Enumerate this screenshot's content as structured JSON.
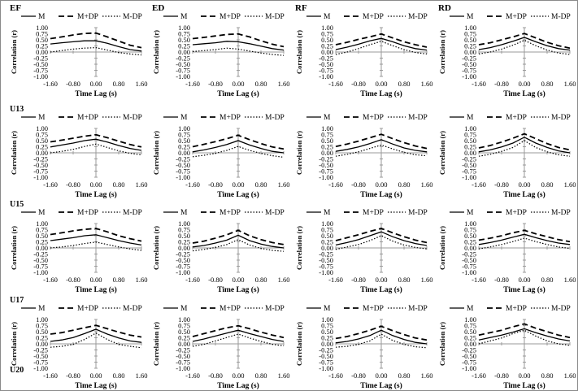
{
  "chart_data": {
    "type": "line",
    "columns": [
      "EF",
      "ED",
      "RF",
      "RD"
    ],
    "rows": [
      "U13",
      "U15",
      "U17",
      "U20"
    ],
    "xlabel": "Time Lag (s)",
    "ylabel": "Correlation (r)",
    "xticks": [
      "-1.60",
      "-0.80",
      "0.00",
      "0.80",
      "1.60"
    ],
    "yticks": [
      "1.00",
      "0.75",
      "0.50",
      "0.25",
      "0.00",
      "-0.25",
      "-0.50",
      "-0.75",
      "-1.00"
    ],
    "xlim": [
      -1.6,
      1.6
    ],
    "ylim": [
      -1.0,
      1.0
    ],
    "x": [
      -1.6,
      -1.2,
      -0.8,
      -0.4,
      0.0,
      0.4,
      0.8,
      1.2,
      1.6
    ],
    "legend": [
      "M",
      "M+DP",
      "M-DP"
    ],
    "grid": false,
    "panels": [
      {
        "row": "U13",
        "col": "EF",
        "series": [
          {
            "name": "M",
            "values": [
              0.33,
              0.38,
              0.42,
              0.46,
              0.46,
              0.36,
              0.22,
              0.1,
              0.04
            ]
          },
          {
            "name": "M+DP",
            "values": [
              0.55,
              0.62,
              0.7,
              0.76,
              0.78,
              0.62,
              0.45,
              0.28,
              0.18
            ]
          },
          {
            "name": "M-DP",
            "values": [
              0.0,
              0.06,
              0.12,
              0.16,
              0.18,
              0.08,
              -0.02,
              -0.08,
              -0.12
            ]
          }
        ]
      },
      {
        "row": "U13",
        "col": "ED",
        "series": [
          {
            "name": "M",
            "values": [
              0.3,
              0.34,
              0.38,
              0.44,
              0.42,
              0.34,
              0.24,
              0.14,
              0.08
            ]
          },
          {
            "name": "M+DP",
            "values": [
              0.55,
              0.6,
              0.66,
              0.72,
              0.74,
              0.62,
              0.46,
              0.32,
              0.22
            ]
          },
          {
            "name": "M-DP",
            "values": [
              0.02,
              0.06,
              0.1,
              0.16,
              0.12,
              0.04,
              -0.04,
              -0.1,
              -0.14
            ]
          }
        ]
      },
      {
        "row": "U13",
        "col": "RF",
        "series": [
          {
            "name": "M",
            "values": [
              0.1,
              0.2,
              0.32,
              0.46,
              0.56,
              0.42,
              0.26,
              0.14,
              0.08
            ]
          },
          {
            "name": "M+DP",
            "values": [
              0.3,
              0.4,
              0.52,
              0.62,
              0.74,
              0.58,
              0.42,
              0.3,
              0.2
            ]
          },
          {
            "name": "M-DP",
            "values": [
              -0.1,
              0.0,
              0.14,
              0.3,
              0.44,
              0.26,
              0.1,
              -0.02,
              -0.08
            ]
          }
        ]
      },
      {
        "row": "U13",
        "col": "RD",
        "series": [
          {
            "name": "M",
            "values": [
              0.1,
              0.18,
              0.3,
              0.44,
              0.6,
              0.42,
              0.26,
              0.14,
              0.08
            ]
          },
          {
            "name": "M+DP",
            "values": [
              0.3,
              0.38,
              0.5,
              0.62,
              0.76,
              0.58,
              0.4,
              0.26,
              0.16
            ]
          },
          {
            "name": "M-DP",
            "values": [
              -0.08,
              0.0,
              0.12,
              0.28,
              0.48,
              0.26,
              0.08,
              -0.04,
              -0.1
            ]
          }
        ]
      },
      {
        "row": "U15",
        "col": "EF",
        "series": [
          {
            "name": "M",
            "values": [
              0.24,
              0.32,
              0.4,
              0.5,
              0.56,
              0.44,
              0.3,
              0.18,
              0.1
            ]
          },
          {
            "name": "M+DP",
            "values": [
              0.45,
              0.52,
              0.6,
              0.68,
              0.74,
              0.62,
              0.48,
              0.34,
              0.24
            ]
          },
          {
            "name": "M-DP",
            "values": [
              0.0,
              0.06,
              0.14,
              0.26,
              0.36,
              0.22,
              0.08,
              -0.02,
              -0.08
            ]
          }
        ]
      },
      {
        "row": "U15",
        "col": "ED",
        "series": [
          {
            "name": "M",
            "values": [
              0.04,
              0.12,
              0.22,
              0.34,
              0.5,
              0.32,
              0.18,
              0.06,
              0.0
            ]
          },
          {
            "name": "M+DP",
            "values": [
              0.25,
              0.35,
              0.46,
              0.58,
              0.72,
              0.54,
              0.38,
              0.24,
              0.16
            ]
          },
          {
            "name": "M-DP",
            "values": [
              -0.16,
              -0.1,
              -0.02,
              0.1,
              0.26,
              0.1,
              -0.02,
              -0.12,
              -0.18
            ]
          }
        ]
      },
      {
        "row": "U15",
        "col": "RF",
        "series": [
          {
            "name": "M",
            "values": [
              0.06,
              0.14,
              0.24,
              0.38,
              0.54,
              0.36,
              0.2,
              0.1,
              0.04
            ]
          },
          {
            "name": "M+DP",
            "values": [
              0.26,
              0.36,
              0.48,
              0.62,
              0.76,
              0.58,
              0.42,
              0.28,
              0.18
            ]
          },
          {
            "name": "M-DP",
            "values": [
              -0.14,
              -0.06,
              0.04,
              0.18,
              0.32,
              0.16,
              0.02,
              -0.08,
              -0.12
            ]
          }
        ]
      },
      {
        "row": "U15",
        "col": "RD",
        "series": [
          {
            "name": "M",
            "values": [
              0.04,
              0.12,
              0.24,
              0.4,
              0.64,
              0.4,
              0.22,
              0.08,
              0.0
            ]
          },
          {
            "name": "M+DP",
            "values": [
              0.2,
              0.3,
              0.44,
              0.6,
              0.78,
              0.58,
              0.38,
              0.22,
              0.12
            ]
          },
          {
            "name": "M-DP",
            "values": [
              -0.14,
              -0.06,
              0.06,
              0.22,
              0.5,
              0.22,
              0.04,
              -0.08,
              -0.14
            ]
          }
        ]
      },
      {
        "row": "U17",
        "col": "EF",
        "series": [
          {
            "name": "M",
            "values": [
              0.3,
              0.36,
              0.42,
              0.5,
              0.54,
              0.42,
              0.3,
              0.2,
              0.12
            ]
          },
          {
            "name": "M+DP",
            "values": [
              0.55,
              0.62,
              0.7,
              0.76,
              0.8,
              0.66,
              0.5,
              0.38,
              0.28
            ]
          },
          {
            "name": "M-DP",
            "values": [
              0.0,
              0.04,
              0.1,
              0.18,
              0.24,
              0.14,
              0.04,
              -0.04,
              -0.1
            ]
          }
        ]
      },
      {
        "row": "U17",
        "col": "ED",
        "series": [
          {
            "name": "M",
            "values": [
              0.04,
              0.1,
              0.2,
              0.32,
              0.52,
              0.3,
              0.16,
              0.06,
              0.0
            ]
          },
          {
            "name": "M+DP",
            "values": [
              0.2,
              0.28,
              0.4,
              0.54,
              0.72,
              0.5,
              0.34,
              0.22,
              0.14
            ]
          },
          {
            "name": "M-DP",
            "values": [
              -0.12,
              -0.06,
              0.02,
              0.14,
              0.34,
              0.12,
              -0.02,
              -0.1,
              -0.14
            ]
          }
        ]
      },
      {
        "row": "U17",
        "col": "RF",
        "series": [
          {
            "name": "M",
            "values": [
              0.12,
              0.22,
              0.34,
              0.5,
              0.66,
              0.46,
              0.3,
              0.18,
              0.1
            ]
          },
          {
            "name": "M+DP",
            "values": [
              0.3,
              0.42,
              0.54,
              0.68,
              0.8,
              0.62,
              0.46,
              0.32,
              0.22
            ]
          },
          {
            "name": "M-DP",
            "values": [
              -0.06,
              0.04,
              0.14,
              0.3,
              0.5,
              0.28,
              0.12,
              0.02,
              -0.04
            ]
          }
        ]
      },
      {
        "row": "U17",
        "col": "RD",
        "series": [
          {
            "name": "M",
            "values": [
              0.14,
              0.22,
              0.32,
              0.44,
              0.56,
              0.42,
              0.3,
              0.2,
              0.14
            ]
          },
          {
            "name": "M+DP",
            "values": [
              0.32,
              0.4,
              0.5,
              0.62,
              0.72,
              0.58,
              0.46,
              0.34,
              0.26
            ]
          },
          {
            "name": "M-DP",
            "values": [
              -0.04,
              0.04,
              0.14,
              0.26,
              0.4,
              0.26,
              0.14,
              0.04,
              -0.02
            ]
          }
        ]
      },
      {
        "row": "U20",
        "col": "EF",
        "series": [
          {
            "name": "M",
            "values": [
              0.1,
              0.16,
              0.26,
              0.42,
              0.6,
              0.4,
              0.24,
              0.12,
              0.06
            ]
          },
          {
            "name": "M+DP",
            "values": [
              0.4,
              0.46,
              0.56,
              0.66,
              0.76,
              0.62,
              0.48,
              0.36,
              0.28
            ]
          },
          {
            "name": "M-DP",
            "values": [
              -0.14,
              -0.1,
              -0.02,
              0.18,
              0.44,
              0.18,
              -0.02,
              -0.1,
              -0.16
            ]
          }
        ]
      },
      {
        "row": "U20",
        "col": "ED",
        "series": [
          {
            "name": "M",
            "values": [
              0.1,
              0.2,
              0.32,
              0.44,
              0.56,
              0.42,
              0.3,
              0.18,
              0.1
            ]
          },
          {
            "name": "M+DP",
            "values": [
              0.3,
              0.42,
              0.54,
              0.66,
              0.74,
              0.62,
              0.48,
              0.36,
              0.26
            ]
          },
          {
            "name": "M-DP",
            "values": [
              -0.1,
              -0.02,
              0.12,
              0.26,
              0.4,
              0.24,
              0.1,
              -0.02,
              -0.08
            ]
          }
        ]
      },
      {
        "row": "U20",
        "col": "RF",
        "series": [
          {
            "name": "M",
            "values": [
              0.04,
              0.1,
              0.2,
              0.34,
              0.56,
              0.34,
              0.18,
              0.06,
              0.0
            ]
          },
          {
            "name": "M+DP",
            "values": [
              0.22,
              0.3,
              0.42,
              0.56,
              0.72,
              0.54,
              0.38,
              0.24,
              0.16
            ]
          },
          {
            "name": "M-DP",
            "values": [
              -0.14,
              -0.1,
              -0.02,
              0.12,
              0.4,
              0.14,
              -0.02,
              -0.12,
              -0.16
            ]
          }
        ]
      },
      {
        "row": "U20",
        "col": "RD",
        "series": [
          {
            "name": "M",
            "values": [
              0.16,
              0.26,
              0.36,
              0.48,
              0.62,
              0.46,
              0.32,
              0.2,
              0.12
            ]
          },
          {
            "name": "M+DP",
            "values": [
              0.36,
              0.46,
              0.56,
              0.7,
              0.82,
              0.64,
              0.5,
              0.36,
              0.26
            ]
          },
          {
            "name": "M-DP",
            "values": [
              0.0,
              0.12,
              0.24,
              0.42,
              0.56,
              0.32,
              0.12,
              0.0,
              -0.06
            ]
          }
        ]
      }
    ]
  }
}
